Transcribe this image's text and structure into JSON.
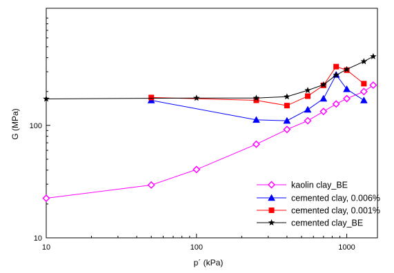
{
  "chart_data": {
    "type": "line",
    "title": "",
    "xlabel": "p´ (kPa)",
    "ylabel": "G (MPa)",
    "xscale": "log",
    "yscale": "log",
    "xlim": [
      10,
      1600
    ],
    "ylim": [
      10,
      1100
    ],
    "x_ticks": [
      {
        "value": 10,
        "label": "10"
      },
      {
        "value": 100,
        "label": "100"
      },
      {
        "value": 1000,
        "label": "1000"
      }
    ],
    "y_ticks": [
      {
        "value": 10,
        "label": "10"
      },
      {
        "value": 100,
        "label": "100"
      }
    ],
    "grid": false,
    "legend_position": "bottom-right",
    "series": [
      {
        "name": "kaolin clay_BE",
        "color": "#ff00ff",
        "marker": "diamond-open",
        "points": [
          [
            10,
            22.5
          ],
          [
            50,
            29.5
          ],
          [
            100,
            40.5
          ],
          [
            250,
            68
          ],
          [
            400,
            92
          ],
          [
            550,
            110
          ],
          [
            700,
            133
          ],
          [
            850,
            155
          ],
          [
            1000,
            173
          ],
          [
            1300,
            200
          ],
          [
            1500,
            228
          ]
        ]
      },
      {
        "name": "cemented clay, 0.006%",
        "color": "#0000ff",
        "marker": "triangle",
        "points": [
          [
            50,
            167
          ],
          [
            250,
            112
          ],
          [
            400,
            110
          ],
          [
            550,
            138
          ],
          [
            700,
            173
          ],
          [
            850,
            282
          ],
          [
            1000,
            210
          ],
          [
            1300,
            167
          ]
        ]
      },
      {
        "name": "cemented clay, 0.001%",
        "color": "#ff0000",
        "marker": "square",
        "points": [
          [
            50,
            177
          ],
          [
            250,
            167
          ],
          [
            400,
            150
          ],
          [
            550,
            182
          ],
          [
            700,
            227
          ],
          [
            850,
            333
          ],
          [
            1000,
            310
          ],
          [
            1300,
            235
          ]
        ]
      },
      {
        "name": "cemented clay_BE",
        "color": "#000000",
        "marker": "star",
        "points": [
          [
            10,
            172
          ],
          [
            100,
            175
          ],
          [
            250,
            175
          ],
          [
            400,
            180
          ],
          [
            550,
            205
          ],
          [
            700,
            230
          ],
          [
            850,
            280
          ],
          [
            1000,
            315
          ],
          [
            1300,
            370
          ],
          [
            1500,
            410
          ]
        ]
      }
    ]
  }
}
